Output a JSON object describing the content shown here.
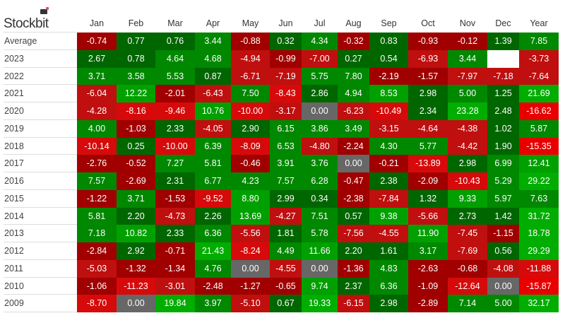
{
  "brand": "Stockbit",
  "colors": {
    "green_dark": "#006600",
    "green": "#008800",
    "green_bright": "#00a000",
    "green_brightest": "#00ad00",
    "red_dark": "#a00000",
    "red": "#c00f0f",
    "red_bright": "#d60a0a",
    "red_brightest": "#e80000",
    "zero": "#676767",
    "empty": "#ffffff"
  },
  "chart_data": {
    "type": "heatmap",
    "columns": [
      "Jan",
      "Feb",
      "Mar",
      "Apr",
      "May",
      "Jun",
      "Jul",
      "Aug",
      "Sep",
      "Oct",
      "Nov",
      "Dec",
      "Year"
    ],
    "rows": [
      {
        "label": "Average",
        "values": [
          "-0.74",
          "0.77",
          "0.76",
          "3.44",
          "-0.88",
          "0.32",
          "4.34",
          "-0.32",
          "0.83",
          "-0.93",
          "-0.12",
          "1.39",
          "7.85"
        ]
      },
      {
        "label": "2023",
        "values": [
          "2.67",
          "0.78",
          "4.64",
          "4.68",
          "-4.94",
          "-0.99",
          "-7.00",
          "0.27",
          "0.54",
          "-6.93",
          "3.44",
          "",
          "-3.73"
        ]
      },
      {
        "label": "2022",
        "values": [
          "3.71",
          "3.58",
          "5.53",
          "0.87",
          "-6.71",
          "-7.19",
          "5.75",
          "7.80",
          "-2.19",
          "-1.57",
          "-7.97",
          "-7.18",
          "-7.64"
        ]
      },
      {
        "label": "2021",
        "values": [
          "-6.04",
          "12.22",
          "-2.01",
          "-6.43",
          "7.50",
          "-8.43",
          "2.86",
          "4.94",
          "8.53",
          "2.98",
          "5.00",
          "1.25",
          "21.69"
        ]
      },
      {
        "label": "2020",
        "values": [
          "-4.28",
          "-8.16",
          "-9.46",
          "10.76",
          "-10.00",
          "-3.17",
          "0.00",
          "-6.23",
          "-10.49",
          "2.34",
          "23.28",
          "2.48",
          "-16.62"
        ]
      },
      {
        "label": "2019",
        "values": [
          "4.00",
          "-1.03",
          "2.33",
          "-4.05",
          "2.90",
          "6.15",
          "3.86",
          "3.49",
          "-3.15",
          "-4.64",
          "-4.38",
          "1.02",
          "5.87"
        ]
      },
      {
        "label": "2018",
        "values": [
          "-10.14",
          "0.25",
          "-10.00",
          "6.39",
          "-8.09",
          "6.53",
          "-4.80",
          "-2.24",
          "4.30",
          "5.77",
          "-4.42",
          "1.90",
          "-15.35"
        ]
      },
      {
        "label": "2017",
        "values": [
          "-2.76",
          "-0.52",
          "7.27",
          "5.81",
          "-0.46",
          "3.91",
          "3.76",
          "0.00",
          "-0.21",
          "-13.89",
          "2.98",
          "6.99",
          "12.41"
        ]
      },
      {
        "label": "2016",
        "values": [
          "7.57",
          "-2.69",
          "2.31",
          "6.77",
          "4.23",
          "7.57",
          "6.28",
          "-0.47",
          "2.38",
          "-2.09",
          "-10.43",
          "5.29",
          "29.22"
        ]
      },
      {
        "label": "2015",
        "values": [
          "-1.22",
          "3.71",
          "-1.53",
          "-9.52",
          "8.80",
          "2.99",
          "0.34",
          "-2.38",
          "-7.84",
          "1.32",
          "9.33",
          "5.97",
          "7.63"
        ]
      },
      {
        "label": "2014",
        "values": [
          "5.81",
          "2.20",
          "-4.73",
          "2.26",
          "13.69",
          "-4.27",
          "7.51",
          "0.57",
          "9.38",
          "-5.66",
          "2.73",
          "1.42",
          "31.72"
        ]
      },
      {
        "label": "2013",
        "values": [
          "7.18",
          "10.82",
          "2.33",
          "6.36",
          "-5.56",
          "1.81",
          "5.78",
          "-7.56",
          "-4.55",
          "11.90",
          "-7.45",
          "-1.15",
          "18.78"
        ]
      },
      {
        "label": "2012",
        "values": [
          "-2.84",
          "2.92",
          "-0.71",
          "21.43",
          "-8.24",
          "4.49",
          "11.66",
          "2.20",
          "1.61",
          "3.17",
          "-7.69",
          "0.56",
          "29.29"
        ]
      },
      {
        "label": "2011",
        "values": [
          "-5.03",
          "-1.32",
          "-1.34",
          "4.76",
          "0.00",
          "-4.55",
          "0.00",
          "-1.36",
          "4.83",
          "-2.63",
          "-0.68",
          "-4.08",
          "-11.88"
        ]
      },
      {
        "label": "2010",
        "values": [
          "-1.06",
          "-11.23",
          "-3.01",
          "-2.48",
          "-1.27",
          "-0.65",
          "9.74",
          "2.37",
          "6.36",
          "-1.09",
          "-12.64",
          "0.00",
          "-15.87"
        ]
      },
      {
        "label": "2009",
        "values": [
          "-8.70",
          "0.00",
          "19.84",
          "3.97",
          "-5.10",
          "0.67",
          "19.33",
          "-6.15",
          "2.98",
          "-2.89",
          "7.14",
          "5.00",
          "32.17"
        ]
      }
    ]
  }
}
